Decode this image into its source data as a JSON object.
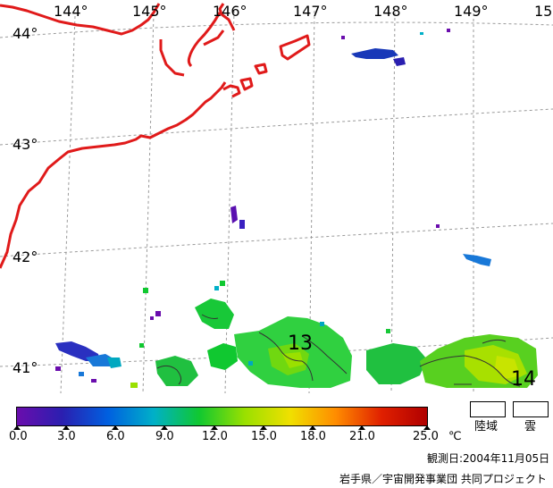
{
  "map": {
    "longitude_labels": [
      "144°",
      "145°",
      "146°",
      "147°",
      "148°",
      "149°",
      "15"
    ],
    "latitude_labels": [
      "44°",
      "43°",
      "42°",
      "41°"
    ],
    "contour_labels": [
      "13",
      "14"
    ],
    "coastline_color": "#e01a1a",
    "grid_color": "#9a9a9a",
    "grid_style": "dashed"
  },
  "legend": {
    "ticks": [
      "0.0",
      "3.0",
      "6.0",
      "9.0",
      "12.0",
      "15.0",
      "18.0",
      "21.0",
      "25.0"
    ],
    "unit": "℃",
    "colors": [
      "#6a0dad",
      "#2a1fb0",
      "#0060e0",
      "#00b0c8",
      "#10c830",
      "#9ae000",
      "#f0e000",
      "#ff8c00",
      "#e02000",
      "#b00000"
    ],
    "land_label": "陸域",
    "cloud_label": "雲"
  },
  "footer": {
    "observation_date": "観測日:2004年11月05日",
    "credit": "岩手県／宇宙開発事業団 共同プロジェクト"
  }
}
